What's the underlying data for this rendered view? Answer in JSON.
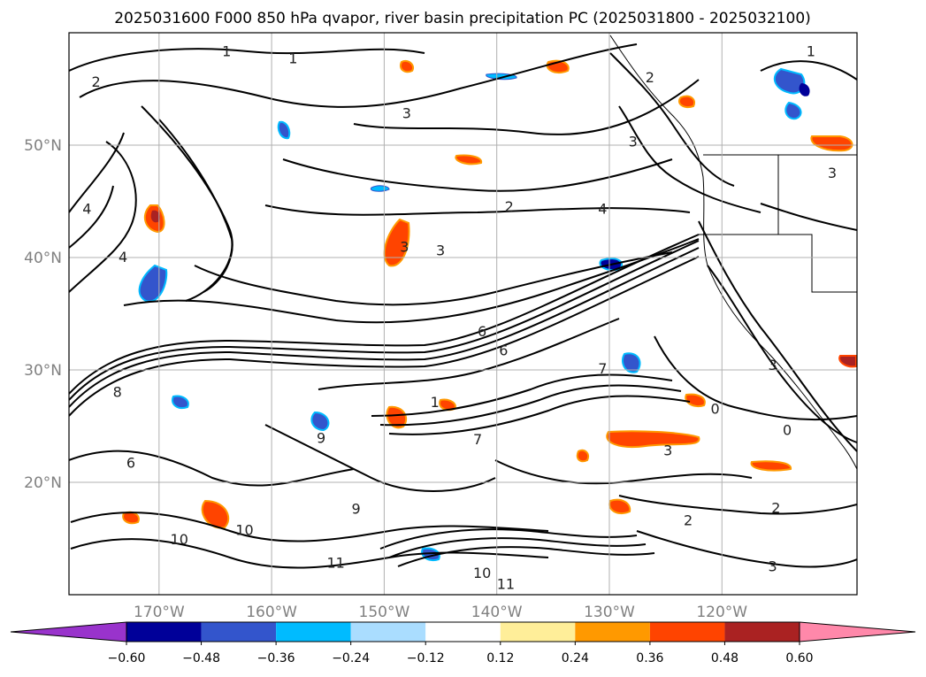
{
  "title": "2025031600 F000 850 hPa qvapor, river basin precipitation PC (2025031800 - 2025032100)",
  "map": {
    "lon_range": [
      -178,
      -108
    ],
    "lat_range": [
      10,
      60
    ],
    "lat_ticks": [
      {
        "value": 20,
        "label": "20°N"
      },
      {
        "value": 30,
        "label": "30°N"
      },
      {
        "value": 40,
        "label": "40°N"
      },
      {
        "value": 50,
        "label": "50°N"
      }
    ],
    "lon_ticks": [
      {
        "value": -170,
        "label": "170°W"
      },
      {
        "value": -160,
        "label": "160°W"
      },
      {
        "value": -150,
        "label": "150°W"
      },
      {
        "value": -140,
        "label": "140°W"
      },
      {
        "value": -130,
        "label": "130°W"
      },
      {
        "value": -120,
        "label": "120°W"
      }
    ],
    "gridlines": true,
    "grid_color": "#b0b0b0",
    "contour_color": "#000000",
    "contour_labels": [
      {
        "lon": -175.6,
        "lat": 55.2,
        "text": "2"
      },
      {
        "lon": -164.0,
        "lat": 57.9,
        "text": "1"
      },
      {
        "lon": -158.1,
        "lat": 57.3,
        "text": "1"
      },
      {
        "lon": -148.0,
        "lat": 52.4,
        "text": "3"
      },
      {
        "lon": -126.4,
        "lat": 55.6,
        "text": "2"
      },
      {
        "lon": -127.9,
        "lat": 49.9,
        "text": "3"
      },
      {
        "lon": -112.1,
        "lat": 57.9,
        "text": "1"
      },
      {
        "lon": -110.2,
        "lat": 47.1,
        "text": "3"
      },
      {
        "lon": -176.4,
        "lat": 43.9,
        "text": "4"
      },
      {
        "lon": -173.2,
        "lat": 39.6,
        "text": "4"
      },
      {
        "lon": -145.0,
        "lat": 40.2,
        "text": "3"
      },
      {
        "lon": -148.2,
        "lat": 40.5,
        "text": "3"
      },
      {
        "lon": -138.9,
        "lat": 44.1,
        "text": "2"
      },
      {
        "lon": -130.6,
        "lat": 43.9,
        "text": "4"
      },
      {
        "lon": -173.7,
        "lat": 27.6,
        "text": "8"
      },
      {
        "lon": -172.5,
        "lat": 21.3,
        "text": "6"
      },
      {
        "lon": -141.3,
        "lat": 33.0,
        "text": "6"
      },
      {
        "lon": -139.4,
        "lat": 31.3,
        "text": "6"
      },
      {
        "lon": -145.5,
        "lat": 26.7,
        "text": "1"
      },
      {
        "lon": -141.7,
        "lat": 23.4,
        "text": "7"
      },
      {
        "lon": -152.5,
        "lat": 17.2,
        "text": "9"
      },
      {
        "lon": -155.6,
        "lat": 23.5,
        "text": "9"
      },
      {
        "lon": -168.2,
        "lat": 14.5,
        "text": "10"
      },
      {
        "lon": -162.4,
        "lat": 15.3,
        "text": "10"
      },
      {
        "lon": -154.3,
        "lat": 12.4,
        "text": "11"
      },
      {
        "lon": -141.3,
        "lat": 11.5,
        "text": "10"
      },
      {
        "lon": -139.2,
        "lat": 10.5,
        "text": "11"
      },
      {
        "lon": -115.2,
        "lat": 17.3,
        "text": "2"
      },
      {
        "lon": -115.5,
        "lat": 12.1,
        "text": "3"
      },
      {
        "lon": -123.0,
        "lat": 16.2,
        "text": "2"
      },
      {
        "lon": -120.6,
        "lat": 26.1,
        "text": "0"
      },
      {
        "lon": -114.2,
        "lat": 24.2,
        "text": "0"
      },
      {
        "lon": -124.8,
        "lat": 22.4,
        "text": "3"
      },
      {
        "lon": -115.5,
        "lat": 30.0,
        "text": "3"
      },
      {
        "lon": -130.6,
        "lat": 29.7,
        "text": "7"
      }
    ]
  },
  "colorbar": {
    "levels": [
      "-0.60",
      "-0.48",
      "-0.36",
      "-0.24",
      "-0.12",
      "0.12",
      "0.24",
      "0.36",
      "0.48",
      "0.60"
    ],
    "colors": [
      "#9933cc",
      "#000099",
      "#3355cc",
      "#00bbff",
      "#aaddff",
      "#ffffff",
      "#ffee99",
      "#ff9900",
      "#ff4400",
      "#aa2222",
      "#ff88aa"
    ],
    "extend": "both"
  }
}
